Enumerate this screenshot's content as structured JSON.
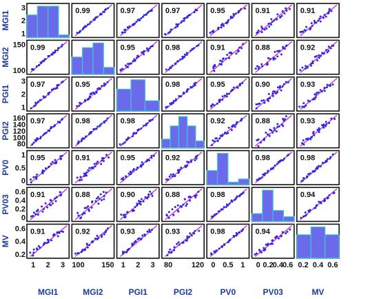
{
  "chart_data": {
    "type": "scatter-matrix",
    "variables": [
      "MGI1",
      "MGI2",
      "PGI1",
      "PGI2",
      "PV0",
      "PV03",
      "MV"
    ],
    "label_color": "#1a3a9e",
    "point_color": "#2b2be0",
    "fit_color": "#d81ccf",
    "hist_fill": "#6a6aeb",
    "hist_edge": "#3cc8d0",
    "tick_labels": [
      [
        "1",
        "2",
        "3"
      ],
      [
        "100",
        "150"
      ],
      [
        "1",
        "2",
        "3"
      ],
      [
        "80",
        "120",
        "160"
      ],
      [
        "0",
        "0.5",
        "1"
      ],
      [
        "0",
        "0.2",
        "0.4",
        "0.6"
      ],
      [
        "0.2",
        "0.4",
        "0.6"
      ]
    ],
    "x_tick_labels": [
      [
        "1",
        "2",
        "3"
      ],
      [
        "100",
        "150"
      ],
      [
        "1",
        "2",
        "3"
      ],
      [
        "80",
        "120"
      ],
      [
        "0",
        "0.5",
        "1"
      ],
      [
        "0",
        "0.2",
        "0.4",
        "0.6"
      ],
      [
        "0.2",
        "0.4",
        "0.6"
      ]
    ],
    "y_tick_labels": [
      [
        "1",
        "2",
        "3"
      ],
      [
        "100",
        "150"
      ],
      [
        "1",
        "2",
        "3"
      ],
      [
        "80",
        "100",
        "120",
        "140",
        "160"
      ],
      [
        "0",
        "0.5",
        "1"
      ],
      [
        "0",
        "0.2",
        "0.4",
        "0.6"
      ],
      [
        "0.2",
        "0.4",
        "0.6"
      ]
    ],
    "correlations": [
      [
        null,
        "0.99",
        "0.97",
        "0.97",
        "0.95",
        "0.91",
        "0.91"
      ],
      [
        "0.99",
        null,
        "0.95",
        "0.98",
        "0.91",
        "0.88",
        "0.92"
      ],
      [
        "0.97",
        "0.95",
        null,
        "0.98",
        "0.95",
        "0.90",
        "0.93"
      ],
      [
        "0.97",
        "0.98",
        "0.98",
        null,
        "0.92",
        "0.88",
        "0.93"
      ],
      [
        "0.95",
        "0.91",
        "0.95",
        "0.92",
        null,
        "0.98",
        "0.98"
      ],
      [
        "0.91",
        "0.88",
        "0.90",
        "0.88",
        "0.98",
        null,
        "0.94"
      ],
      [
        "0.91",
        "0.92",
        "0.93",
        "0.93",
        "0.98",
        "0.94",
        null
      ]
    ],
    "histograms": [
      [
        0.72,
        1.0,
        1.0,
        0.08
      ],
      [
        0.55,
        0.85,
        1.0,
        0.22
      ],
      [
        0.7,
        1.0,
        0.33
      ],
      [
        0.28,
        0.7,
        1.0,
        0.7,
        0.22
      ],
      [
        0.45,
        1.0,
        0.08,
        0.18
      ],
      [
        0.25,
        1.0,
        0.35,
        0.15
      ],
      [
        0.75,
        1.0,
        0.75
      ]
    ]
  }
}
